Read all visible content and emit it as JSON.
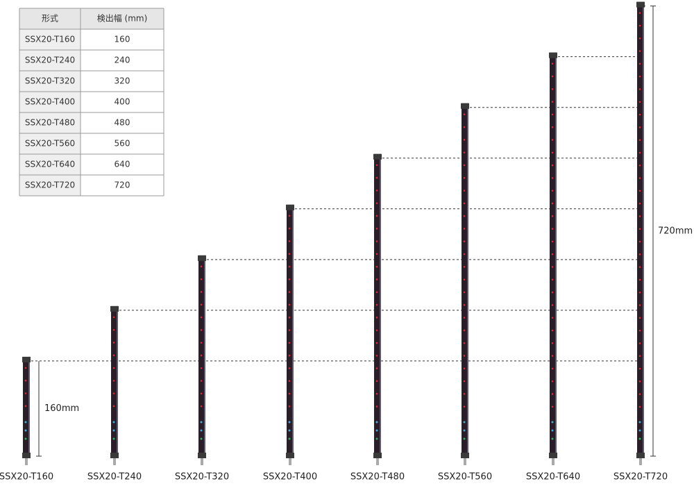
{
  "table": {
    "header": [
      "形式",
      "検出幅 (mm)"
    ],
    "rows": [
      [
        "SSX20-T160",
        160
      ],
      [
        "SSX20-T240",
        240
      ],
      [
        "SSX20-T320",
        320
      ],
      [
        "SSX20-T400",
        400
      ],
      [
        "SSX20-T480",
        480
      ],
      [
        "SSX20-T560",
        560
      ],
      [
        "SSX20-T640",
        640
      ],
      [
        "SSX20-T720",
        720
      ]
    ]
  },
  "sensor_labels": [
    "SSX20-T160",
    "SSX20-T240",
    "SSX20-T320",
    "SSX20-T400",
    "SSX20-T480",
    "SSX20-T560",
    "SSX20-T640",
    "SSX20-T720"
  ],
  "dimensions": {
    "min": "160mm",
    "max": "720mm"
  }
}
